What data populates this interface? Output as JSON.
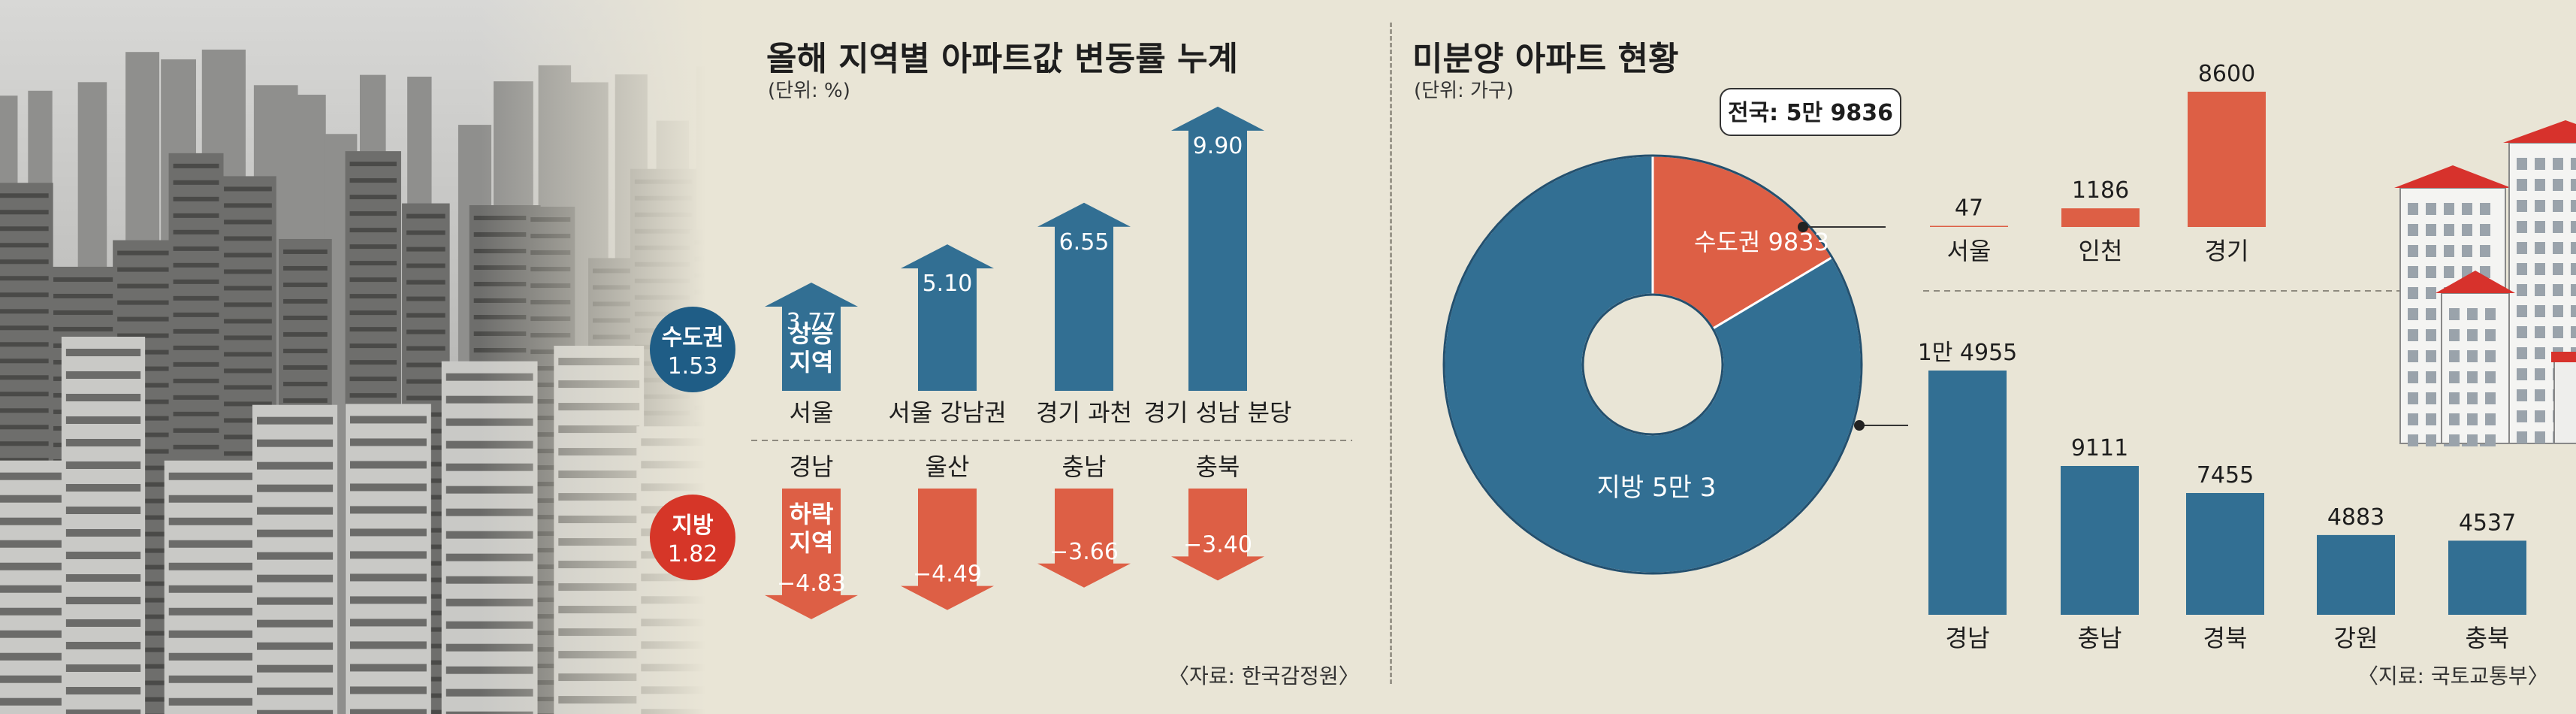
{
  "colors": {
    "blue": "#326f93",
    "red": "#dd5f45",
    "navy": "#1f5d86",
    "crimson": "#d63628",
    "bg": "#e9e5d6",
    "text": "#1e1e1e"
  },
  "photo": {
    "icon": "apartment-city-photo"
  },
  "chart_data": [
    {
      "type": "bar",
      "title": "올해 지역별 아파트값 변동률 누계",
      "unit": "(단위: %)",
      "source": "〈자료: 한국감정원〉",
      "groups": [
        {
          "name": "수도권",
          "value_label": "1.53",
          "direction": "up",
          "region_label": "상승\n지역",
          "categories": [
            "서울",
            "서울 강남권",
            "경기 과천",
            "경기 성남 분당"
          ],
          "values": [
            3.77,
            5.1,
            6.55,
            9.9
          ],
          "labels": [
            "3.77",
            "5.10",
            "6.55",
            "9.90"
          ]
        },
        {
          "name": "지방",
          "value_label": "1.82",
          "direction": "down",
          "region_label": "하락\n지역",
          "categories": [
            "경남",
            "울산",
            "충남",
            "충북"
          ],
          "values": [
            -4.83,
            -4.49,
            -3.66,
            -3.4
          ],
          "labels": [
            "−4.83",
            "−4.49",
            "−3.66",
            "−3.40"
          ]
        }
      ]
    },
    {
      "type": "pie",
      "title": "미분양 아파트 현황",
      "unit": "(단위: 가구)",
      "source": "〈지료: 국토교통부〉",
      "total_label": "전국: 5만 9836",
      "slices": [
        {
          "name": "수도권",
          "value": 9833,
          "label": "수도권 9833"
        },
        {
          "name": "지방",
          "value": 50003,
          "label": "지방 5만 3"
        }
      ]
    },
    {
      "type": "bar",
      "series_name": "수도권",
      "categories": [
        "서울",
        "인천",
        "경기"
      ],
      "values": [
        47,
        1186,
        8600
      ],
      "labels": [
        "47",
        "1186",
        "8600"
      ]
    },
    {
      "type": "bar",
      "series_name": "지방",
      "categories": [
        "경남",
        "충남",
        "경북",
        "강원",
        "충북"
      ],
      "values": [
        14955,
        9111,
        7455,
        4883,
        4537
      ],
      "labels": [
        "1만 4955",
        "9111",
        "7455",
        "4883",
        "4537"
      ]
    }
  ]
}
